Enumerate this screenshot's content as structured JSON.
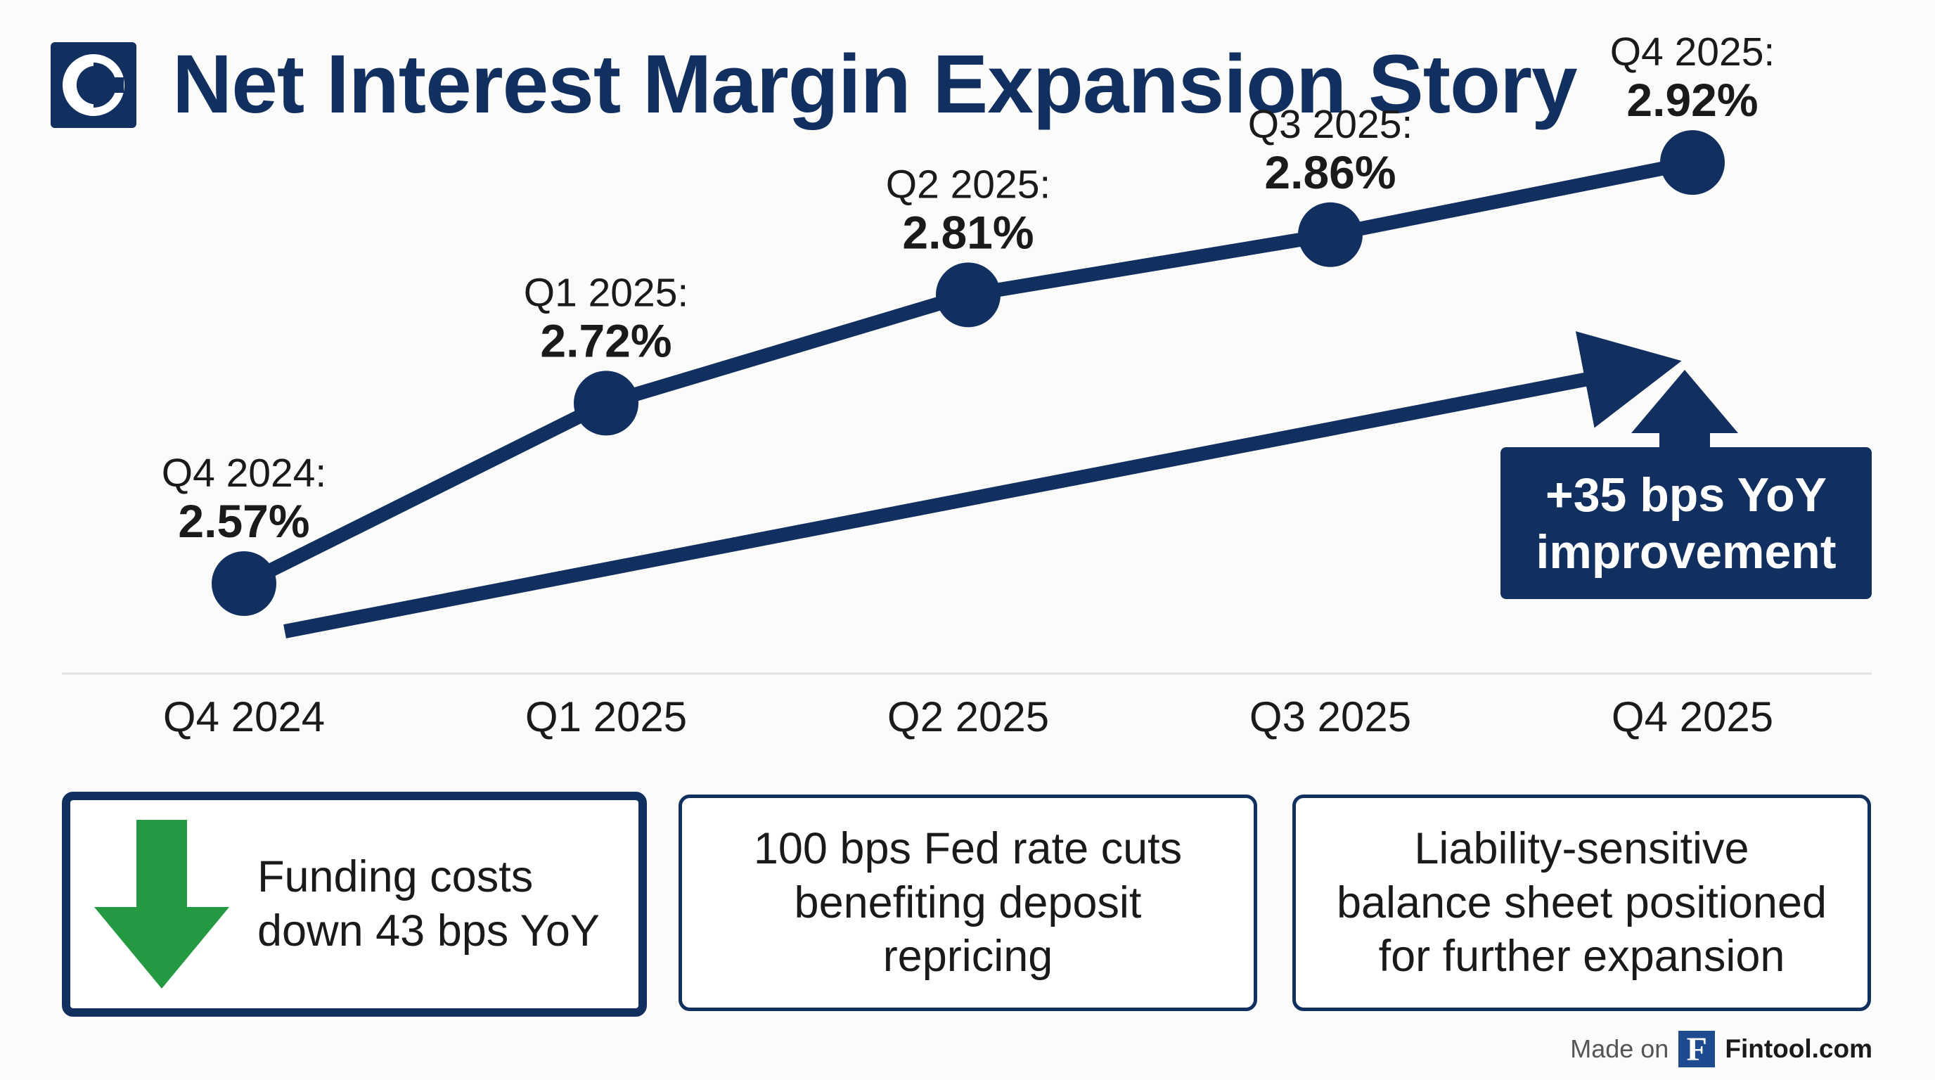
{
  "title": "Net Interest Margin Expansion Story",
  "colors": {
    "navy": "#12305f",
    "green": "#239a42",
    "text": "#1a1a1a",
    "background": "#fbfbf9"
  },
  "chart_data": {
    "type": "line",
    "title": "Net Interest Margin Expansion Story",
    "unit": "%",
    "categories": [
      "Q4 2024",
      "Q1 2025",
      "Q2 2025",
      "Q3 2025",
      "Q4 2025"
    ],
    "series": [
      {
        "name": "Net Interest Margin",
        "values": [
          2.57,
          2.72,
          2.81,
          2.86,
          2.92
        ]
      }
    ],
    "point_labels": [
      "Q4 2024:",
      "Q1 2025:",
      "Q2 2025:",
      "Q3 2025:",
      "Q4 2025:"
    ],
    "value_labels": [
      "2.57%",
      "2.72%",
      "2.81%",
      "2.86%",
      "2.92%"
    ],
    "trend_arrow": {
      "from": "Q4 2024",
      "to": "Q4 2025"
    },
    "callout": {
      "line1": "+35 bps YoY",
      "line2": "improvement"
    },
    "xlabel": "",
    "ylabel": "",
    "grid": false,
    "legend": "none"
  },
  "cards": [
    {
      "icon": "down-arrow-icon",
      "text": "Funding costs\ndown 43 bps YoY"
    },
    {
      "text": "100 bps Fed rate cuts\nbenefiting deposit\nrepricing"
    },
    {
      "text": "Liability-sensitive\nbalance sheet positioned\nfor further expansion"
    }
  ],
  "footer": {
    "made_on": "Made on",
    "brand_initial": "F",
    "brand": "Fintool.com"
  }
}
